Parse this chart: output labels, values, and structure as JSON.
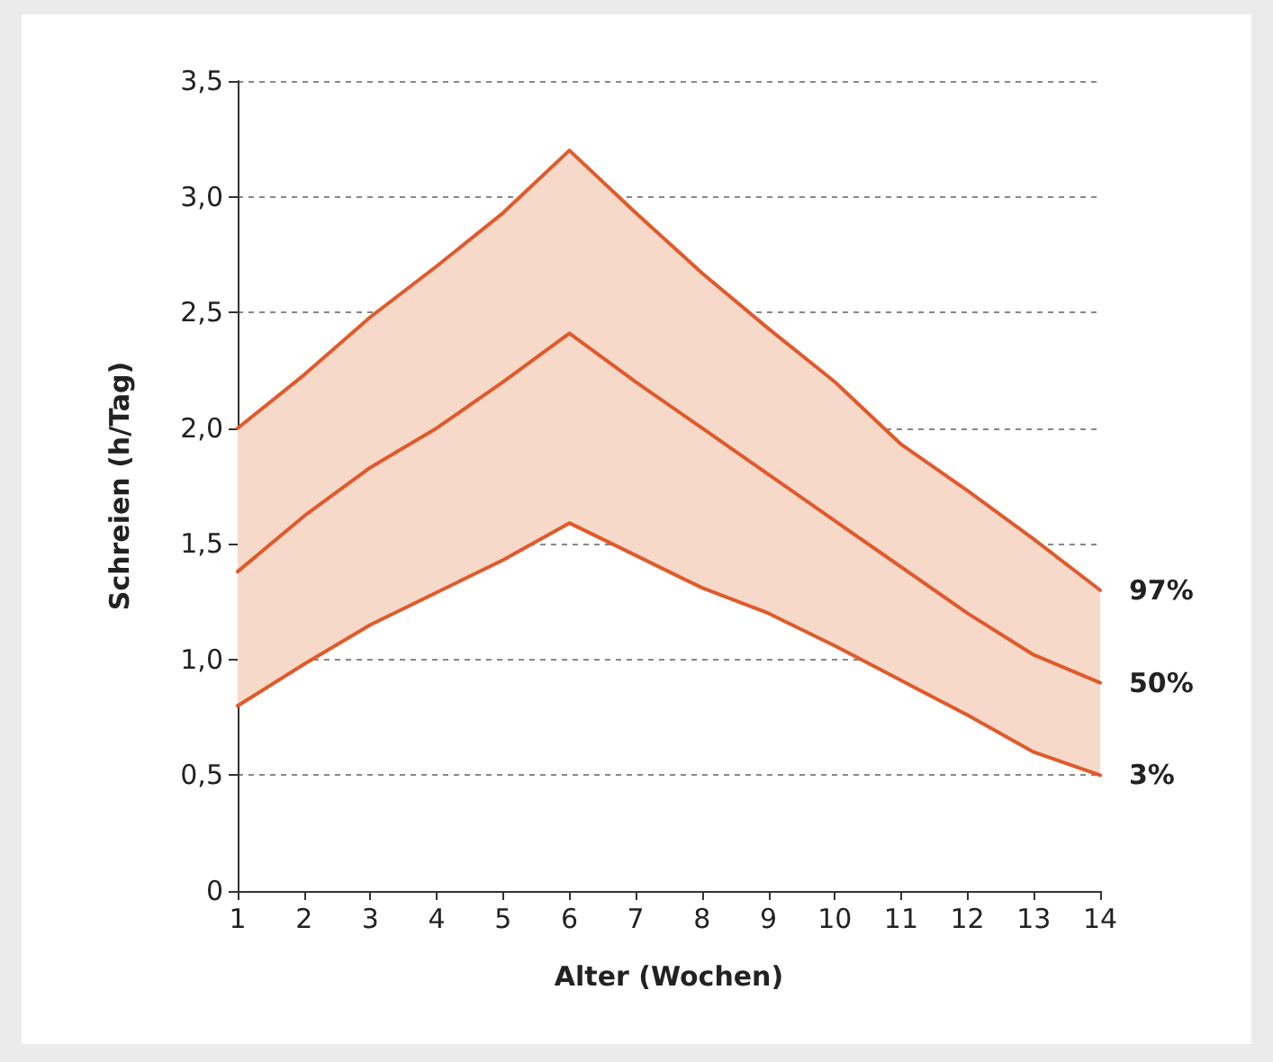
{
  "chart_data": {
    "type": "line",
    "xlabel": "Alter (Wochen)",
    "ylabel": "Schreien (h/Tag)",
    "x": [
      1,
      2,
      3,
      4,
      5,
      6,
      7,
      8,
      9,
      10,
      11,
      12,
      13,
      14
    ],
    "series": [
      {
        "name": "97%",
        "color": "#e05a2b",
        "values": [
          2.0,
          2.23,
          2.48,
          2.7,
          2.93,
          3.2,
          2.93,
          2.67,
          2.43,
          2.2,
          1.93,
          1.73,
          1.52,
          1.3
        ]
      },
      {
        "name": "50%",
        "color": "#e05a2b",
        "values": [
          1.38,
          1.62,
          1.83,
          2.0,
          2.2,
          2.41,
          2.2,
          2.0,
          1.8,
          1.6,
          1.4,
          1.2,
          1.02,
          0.9
        ],
        "lower": [
          0.8,
          0.98,
          1.15,
          1.29,
          1.43,
          1.59,
          1.45,
          1.31,
          1.2,
          1.06,
          0.91,
          0.76,
          0.6,
          0.5
        ],
        "upper": [
          2.0,
          2.23,
          2.48,
          2.7,
          2.93,
          3.2,
          2.93,
          2.67,
          2.43,
          2.2,
          1.93,
          1.73,
          1.52,
          1.3
        ]
      },
      {
        "name": "3%",
        "color": "#e05a2b",
        "values": [
          0.8,
          0.98,
          1.15,
          1.29,
          1.43,
          1.59,
          1.45,
          1.31,
          1.2,
          1.06,
          0.91,
          0.76,
          0.6,
          0.5
        ]
      }
    ],
    "xlim": [
      1,
      14
    ],
    "xticks": [
      1,
      2,
      3,
      4,
      5,
      6,
      7,
      8,
      9,
      10,
      11,
      12,
      13,
      14
    ],
    "ylim": [
      0,
      3.5
    ],
    "yticks": [
      0,
      {
        "value": 0.5,
        "label": "0,5"
      },
      {
        "value": 1,
        "label": "1,0"
      },
      {
        "value": 1.5,
        "label": "1,5"
      },
      {
        "value": 2,
        "label": "2,0"
      },
      {
        "value": 2.5,
        "label": "2,5"
      },
      {
        "value": 3,
        "label": "3,0"
      },
      {
        "value": 3.5,
        "label": "3,5"
      }
    ],
    "grid": "y",
    "legend": false,
    "marker": "none",
    "line_style": "solid"
  }
}
